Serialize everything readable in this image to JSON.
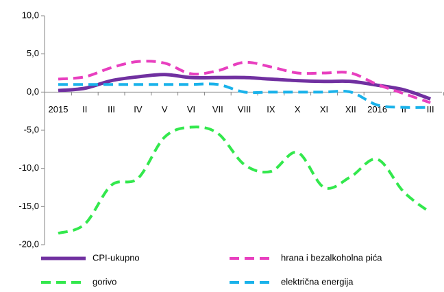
{
  "chart_data": {
    "type": "line",
    "categories": [
      "2015",
      "II",
      "III",
      "IV",
      "V",
      "VI",
      "VII",
      "VIII",
      "IX",
      "X",
      "XI",
      "XII",
      "2016",
      "II",
      "III"
    ],
    "series": [
      {
        "name": "CPI-ukupno",
        "color": "#7030a0",
        "dash": "solid",
        "values": [
          0.2,
          0.5,
          1.5,
          2.0,
          2.3,
          1.9,
          1.9,
          1.9,
          1.7,
          1.5,
          1.4,
          1.4,
          0.9,
          0.3,
          -0.9
        ]
      },
      {
        "name": "hrana i bezalkoholna pića",
        "color": "#e83fbf",
        "dash": "dashed",
        "values": [
          1.7,
          2.0,
          3.2,
          4.0,
          3.8,
          2.4,
          2.8,
          3.9,
          3.3,
          2.5,
          2.5,
          2.5,
          1.0,
          -0.2,
          -1.4
        ]
      },
      {
        "name": "gorivo",
        "color": "#33e84d",
        "dash": "dashed",
        "values": [
          -18.5,
          -17.3,
          -12.2,
          -11.3,
          -5.9,
          -4.6,
          -5.4,
          -9.5,
          -10.4,
          -7.9,
          -12.5,
          -11.1,
          -8.8,
          -13.1,
          -15.8
        ]
      },
      {
        "name": "električna energija",
        "color": "#1ab2ea",
        "dash": "dashed",
        "values": [
          1.0,
          1.0,
          1.0,
          1.0,
          1.0,
          1.0,
          1.0,
          0.0,
          0.0,
          0.0,
          0.0,
          0.0,
          -1.7,
          -2.0,
          -2.0
        ]
      }
    ],
    "ylim": [
      -20,
      10
    ],
    "yticks": [
      {
        "value": 10,
        "label": "10,0"
      },
      {
        "value": 5,
        "label": "5,0"
      },
      {
        "value": 0,
        "label": "0,0"
      },
      {
        "value": -5,
        "label": "-5,0"
      },
      {
        "value": -10,
        "label": "-10,0"
      },
      {
        "value": -15,
        "label": "-15,0"
      },
      {
        "value": -20,
        "label": "-20,0"
      }
    ],
    "legend": "bottom"
  }
}
